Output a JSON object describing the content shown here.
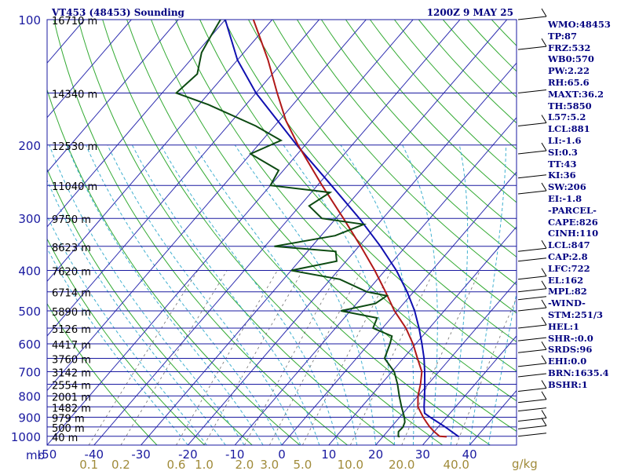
{
  "header": {
    "station": "VT453 (48453) Sounding",
    "time": "1200Z  9 MAY 25"
  },
  "axis": {
    "pressure_unit_label": "mb",
    "temp_unit_label": "",
    "mixing_unit_label": "g/kg"
  },
  "colors": {
    "isobar": "#1a1aa0",
    "isotherm": "#2f2fb0",
    "dry_adiabat": "#33aa33",
    "moist_adiabat": "#40b0d0",
    "mixing_ratio": "#707070",
    "temperature": "#b01818",
    "dewpoint": "#0c4a12",
    "parcel": "#1010b0",
    "text": "#000080",
    "mixing_label": "#a08b3a"
  },
  "stats": [
    "WMO:48453",
    "TP:87",
    "FRZ:532",
    "WB0:570",
    "PW:2.22",
    "RH:65.6",
    "MAXT:36.2",
    "TH:5850",
    "L57:5.2",
    "LCL:881",
    "LI:-1.6",
    "SI:0.3",
    "TT:43",
    "KI:36",
    "SW:206",
    "EI:-1.8",
    "-PARCEL-",
    "CAPE:826",
    "CINH:110",
    "LCL:847",
    "CAP:2.8",
    "LFC:722",
    "EL:162",
    "MPL:82",
    "-WIND-",
    "STM:251/3",
    "HEL:1",
    "SHR-:0.0",
    "SRDS:96",
    "EHI:0.0",
    "BRN:1635.4",
    "BSHR:1"
  ],
  "chart_data": {
    "type": "line",
    "title": "VT453 (48453) Sounding",
    "subtitle": "1200Z  9 MAY 25",
    "pressure_levels": [
      100,
      200,
      300,
      400,
      500,
      600,
      700,
      800,
      900,
      1000
    ],
    "pressure_range": [
      100,
      1050
    ],
    "temperature_ticks": [
      -50,
      -40,
      -30,
      -20,
      -10,
      0,
      10,
      20,
      30,
      40
    ],
    "temperature_range": [
      -50,
      50
    ],
    "height_labels": [
      {
        "p": 100,
        "label": "16710 m"
      },
      {
        "p": 150,
        "label": "14340 m"
      },
      {
        "p": 200,
        "label": "12530 m"
      },
      {
        "p": 250,
        "label": "11040 m"
      },
      {
        "p": 300,
        "label": "9750 m"
      },
      {
        "p": 350,
        "label": "8623 m"
      },
      {
        "p": 400,
        "label": "7620 m"
      },
      {
        "p": 450,
        "label": "6714 m"
      },
      {
        "p": 500,
        "label": "5890 m"
      },
      {
        "p": 550,
        "label": "5126 m"
      },
      {
        "p": 600,
        "label": "4417 m"
      },
      {
        "p": 650,
        "label": "3760 m"
      },
      {
        "p": 700,
        "label": "3142 m"
      },
      {
        "p": 750,
        "label": "2554 m"
      },
      {
        "p": 800,
        "label": "2001 m"
      },
      {
        "p": 850,
        "label": "1482 m"
      },
      {
        "p": 900,
        "label": "979 m"
      },
      {
        "p": 950,
        "label": "500 m"
      },
      {
        "p": 1000,
        "label": "40 m"
      }
    ],
    "mixing_ratio_labels": [
      "0.1",
      "0.2",
      "0.6",
      "1.0",
      "2.0",
      "3.0",
      "5.0",
      "10.0",
      "20.0",
      "40.0"
    ],
    "mixing_ratio_values": [
      0.1,
      0.2,
      0.6,
      1.0,
      2.0,
      3.0,
      5.0,
      10.0,
      20.0,
      40.0
    ],
    "temperature_profile": [
      {
        "p": 1003,
        "t": 33.6
      },
      {
        "p": 1000,
        "t": 32.0
      },
      {
        "p": 975,
        "t": 30.0
      },
      {
        "p": 950,
        "t": 28.2
      },
      {
        "p": 925,
        "t": 26.6
      },
      {
        "p": 900,
        "t": 25.0
      },
      {
        "p": 850,
        "t": 22.0
      },
      {
        "p": 800,
        "t": 20.0
      },
      {
        "p": 750,
        "t": 18.4
      },
      {
        "p": 700,
        "t": 16.4
      },
      {
        "p": 650,
        "t": 13.0
      },
      {
        "p": 600,
        "t": 9.4
      },
      {
        "p": 550,
        "t": 5.0
      },
      {
        "p": 500,
        "t": -0.6
      },
      {
        "p": 450,
        "t": -6.0
      },
      {
        "p": 400,
        "t": -12.2
      },
      {
        "p": 350,
        "t": -19.6
      },
      {
        "p": 300,
        "t": -28.4
      },
      {
        "p": 250,
        "t": -39.0
      },
      {
        "p": 200,
        "t": -51.5
      },
      {
        "p": 175,
        "t": -58.5
      },
      {
        "p": 150,
        "t": -65.5
      },
      {
        "p": 125,
        "t": -73.5
      },
      {
        "p": 110,
        "t": -79.5
      },
      {
        "p": 100,
        "t": -84.0
      }
    ],
    "dewpoint_profile": [
      {
        "p": 1003,
        "t": 23.6
      },
      {
        "p": 1000,
        "t": 23.2
      },
      {
        "p": 975,
        "t": 22.4
      },
      {
        "p": 950,
        "t": 22.5
      },
      {
        "p": 925,
        "t": 22.0
      },
      {
        "p": 900,
        "t": 21.0
      },
      {
        "p": 850,
        "t": 18.5
      },
      {
        "p": 800,
        "t": 16.0
      },
      {
        "p": 750,
        "t": 13.5
      },
      {
        "p": 700,
        "t": 10.5
      },
      {
        "p": 650,
        "t": 6.0
      },
      {
        "p": 600,
        "t": 4.5
      },
      {
        "p": 575,
        "t": 3.5
      },
      {
        "p": 550,
        "t": -2.0
      },
      {
        "p": 520,
        "t": -3.0
      },
      {
        "p": 500,
        "t": -12.0
      },
      {
        "p": 480,
        "t": -6.0
      },
      {
        "p": 460,
        "t": -5.0
      },
      {
        "p": 450,
        "t": -10.0
      },
      {
        "p": 420,
        "t": -18.0
      },
      {
        "p": 400,
        "t": -30.0
      },
      {
        "p": 380,
        "t": -22.0
      },
      {
        "p": 360,
        "t": -24.0
      },
      {
        "p": 350,
        "t": -38.0
      },
      {
        "p": 330,
        "t": -27.0
      },
      {
        "p": 310,
        "t": -23.0
      },
      {
        "p": 300,
        "t": -33.0
      },
      {
        "p": 280,
        "t": -38.0
      },
      {
        "p": 260,
        "t": -36.0
      },
      {
        "p": 250,
        "t": -50.0
      },
      {
        "p": 230,
        "t": -51.0
      },
      {
        "p": 210,
        "t": -60.0
      },
      {
        "p": 195,
        "t": -56.0
      },
      {
        "p": 180,
        "t": -64.0
      },
      {
        "p": 160,
        "t": -78.0
      },
      {
        "p": 150,
        "t": -87.0
      },
      {
        "p": 135,
        "t": -86.0
      },
      {
        "p": 120,
        "t": -89.0
      },
      {
        "p": 110,
        "t": -90.0
      },
      {
        "p": 100,
        "t": -91.0
      }
    ],
    "parcel_profile": [
      {
        "p": 1003,
        "t": 36.2
      },
      {
        "p": 950,
        "t": 31.5
      },
      {
        "p": 900,
        "t": 26.5
      },
      {
        "p": 881,
        "t": 24.6
      },
      {
        "p": 850,
        "t": 23.3
      },
      {
        "p": 800,
        "t": 21.4
      },
      {
        "p": 750,
        "t": 19.3
      },
      {
        "p": 700,
        "t": 17.0
      },
      {
        "p": 650,
        "t": 14.4
      },
      {
        "p": 600,
        "t": 11.3
      },
      {
        "p": 550,
        "t": 7.8
      },
      {
        "p": 500,
        "t": 3.7
      },
      {
        "p": 450,
        "t": -1.4
      },
      {
        "p": 400,
        "t": -7.6
      },
      {
        "p": 350,
        "t": -15.4
      },
      {
        "p": 300,
        "t": -25.0
      },
      {
        "p": 250,
        "t": -37.0
      },
      {
        "p": 200,
        "t": -51.8
      },
      {
        "p": 150,
        "t": -70.0
      },
      {
        "p": 125,
        "t": -80.0
      },
      {
        "p": 100,
        "t": -90.0
      }
    ]
  }
}
